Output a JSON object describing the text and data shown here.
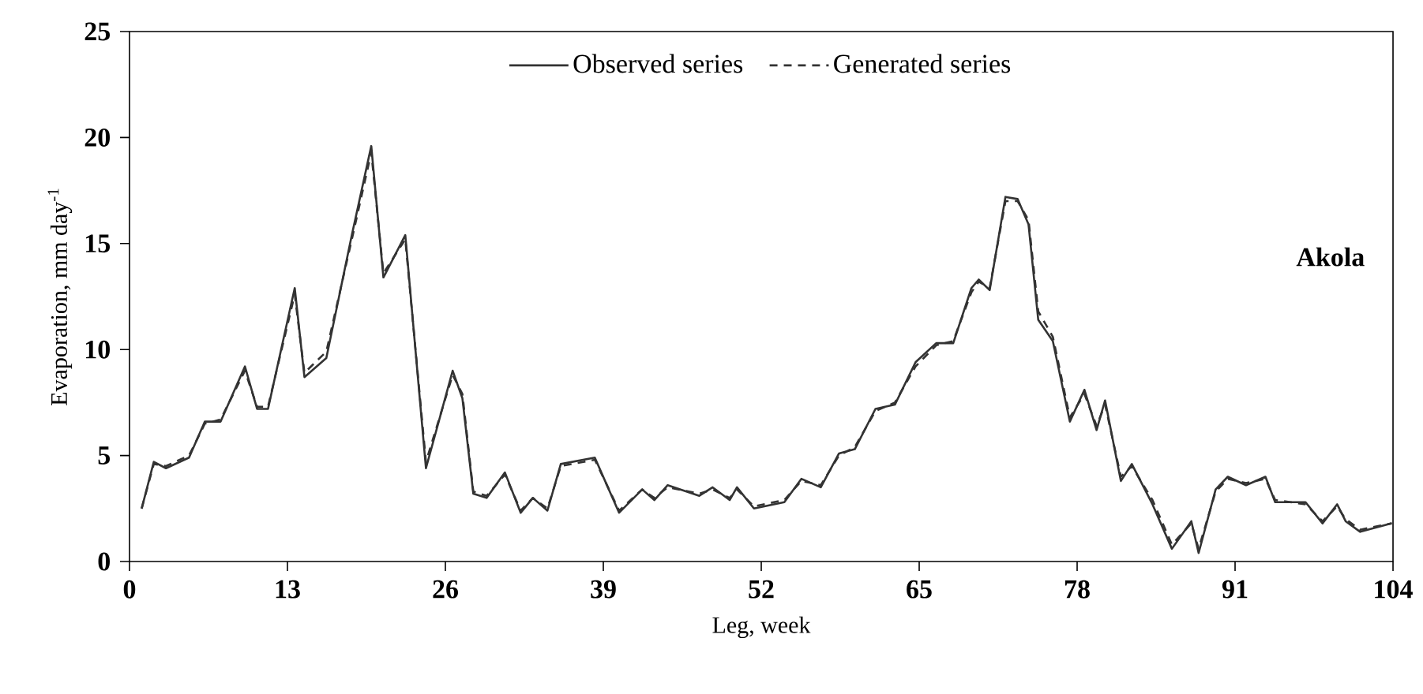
{
  "chart_data": {
    "type": "line",
    "xlabel": "Leg, week",
    "ylabel": "Evaporation, mm day$^{-1}$",
    "annotations": [
      "Akola"
    ],
    "x": [
      1,
      2,
      3,
      4.9,
      6.2,
      7.5,
      9.5,
      10.5,
      11.4,
      13.6,
      14.4,
      16.2,
      18.3,
      19.9,
      20.9,
      22.7,
      24.4,
      26.6,
      27.4,
      28.3,
      29.4,
      30.9,
      32.2,
      33.2,
      34.4,
      35.5,
      38.3,
      40.3,
      42.2,
      43.2,
      44.3,
      46.9,
      48,
      49.4,
      50,
      51.4,
      53.9,
      55.3,
      56.9,
      58.4,
      59.7,
      61.4,
      63,
      64.7,
      66.4,
      67.8,
      69.3,
      69.9,
      70.8,
      72.1,
      73.1,
      74,
      74.8,
      76,
      77.4,
      78.6,
      79.6,
      80.3,
      81.6,
      82.5,
      84.2,
      85.8,
      87.4,
      88,
      89.4,
      90.4,
      91.9,
      93.5,
      94.3,
      96.8,
      98.2,
      99.4,
      100.1,
      101.3,
      103.9
    ],
    "series": [
      {
        "name": "Observed series",
        "color": "#333333",
        "line_style": "solid",
        "values": [
          2.5,
          4.7,
          4.4,
          4.9,
          6.6,
          6.6,
          9.2,
          7.2,
          7.2,
          12.9,
          8.7,
          9.6,
          15.4,
          19.6,
          13.4,
          15.4,
          4.4,
          9.0,
          7.7,
          3.2,
          3.0,
          4.2,
          2.3,
          3.0,
          2.4,
          4.6,
          4.9,
          2.3,
          3.4,
          2.9,
          3.6,
          3.1,
          3.5,
          2.9,
          3.5,
          2.5,
          2.8,
          3.9,
          3.5,
          5.1,
          5.3,
          7.2,
          7.4,
          9.4,
          10.3,
          10.3,
          12.9,
          13.3,
          12.8,
          17.2,
          17.1,
          15.9,
          11.4,
          10.4,
          6.6,
          8.1,
          6.2,
          7.6,
          3.8,
          4.6,
          2.7,
          0.6,
          1.9,
          0.4,
          3.4,
          4.0,
          3.6,
          4.0,
          2.8,
          2.8,
          1.8,
          2.7,
          1.9,
          1.4,
          1.8
        ]
      },
      {
        "name": "Generated series",
        "color": "#333333",
        "line_style": "dashed",
        "values": [
          2.5,
          4.6,
          4.5,
          5.0,
          6.5,
          6.7,
          9.0,
          7.3,
          7.3,
          12.6,
          8.9,
          9.9,
          15.2,
          19.3,
          13.6,
          15.2,
          4.7,
          8.8,
          7.9,
          3.3,
          3.1,
          4.1,
          2.4,
          3.0,
          2.5,
          4.5,
          4.8,
          2.4,
          3.4,
          3.0,
          3.5,
          3.2,
          3.4,
          3.0,
          3.4,
          2.6,
          2.9,
          3.8,
          3.6,
          5.0,
          5.4,
          7.1,
          7.5,
          9.2,
          10.2,
          10.4,
          12.7,
          13.2,
          12.9,
          17.0,
          17.0,
          16.1,
          11.8,
          10.6,
          6.8,
          7.9,
          6.4,
          7.4,
          4.0,
          4.5,
          2.9,
          0.8,
          1.8,
          0.6,
          3.3,
          3.9,
          3.7,
          3.9,
          2.9,
          2.7,
          1.9,
          2.6,
          2.0,
          1.5,
          1.8
        ]
      }
    ],
    "xlim": [
      0,
      104
    ],
    "xticks": [
      0,
      13,
      26,
      39,
      52,
      65,
      78,
      91,
      104
    ],
    "ylim": [
      0,
      25
    ],
    "yticks": [
      0,
      5,
      10,
      15,
      20,
      25
    ],
    "grid": false,
    "legend": "top",
    "marker": "none"
  }
}
